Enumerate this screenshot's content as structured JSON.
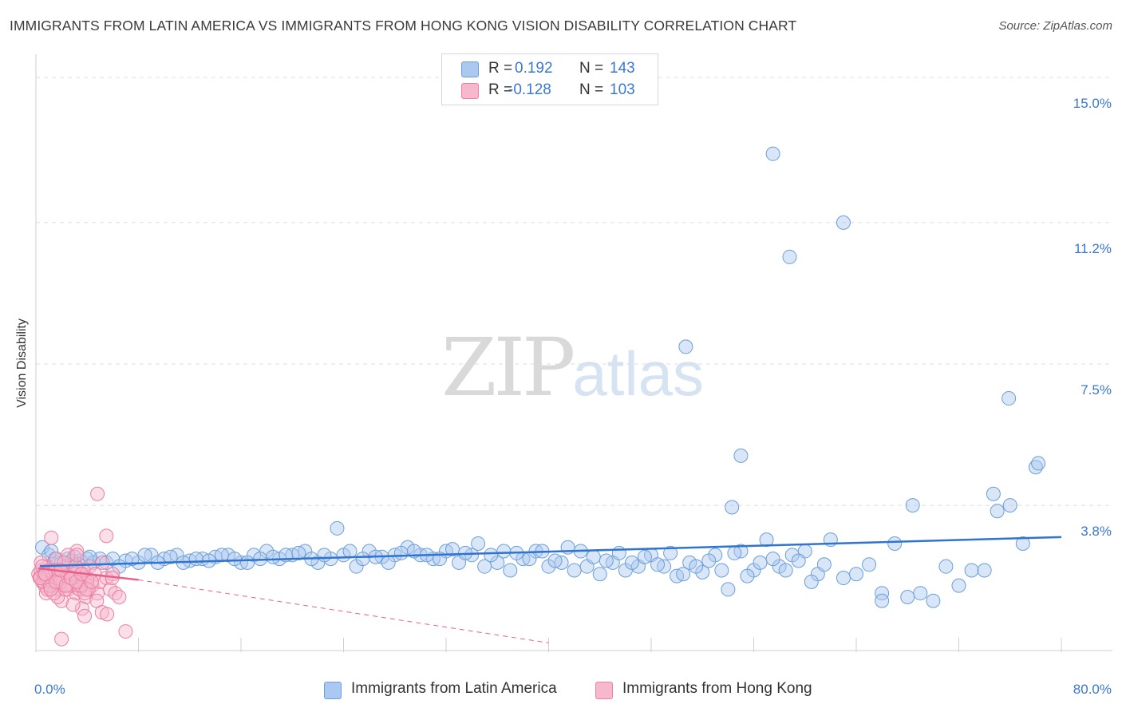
{
  "title": "IMMIGRANTS FROM LATIN AMERICA VS IMMIGRANTS FROM HONG KONG VISION DISABILITY CORRELATION CHART",
  "source": "Source: ZipAtlas.com",
  "watermark": {
    "left": "ZIP",
    "right": "atlas"
  },
  "legend_top": [
    {
      "r_label": "R =",
      "r_value": "0.192",
      "n_label": "N =",
      "n_value": "143",
      "color": "#aac8f0"
    },
    {
      "r_label": "R =",
      "r_value": "-0.128",
      "n_label": "N =",
      "n_value": "103",
      "color": "#f5b8cc"
    }
  ],
  "colors": {
    "blue_fill": "#aac8f0",
    "blue_stroke": "#6a9fd8",
    "blue_line": "#2f74d0",
    "pink_fill": "#f5b8cc",
    "pink_stroke": "#ec7fa2",
    "pink_line": "#e8608a",
    "tick_label": "#3a78d0",
    "grid": "#dcdcdc"
  },
  "chart_data": {
    "type": "scatter",
    "title": "IMMIGRANTS FROM LATIN AMERICA VS IMMIGRANTS FROM HONG KONG VISION DISABILITY CORRELATION CHART",
    "xlabel": "",
    "ylabel": "Vision Disability",
    "xlim": [
      0,
      80
    ],
    "ylim": [
      0,
      15.5
    ],
    "x_ticks": [
      "0.0%",
      "80.0%"
    ],
    "y_ticks": [
      {
        "value": 3.8,
        "label": "3.8%"
      },
      {
        "value": 7.5,
        "label": "7.5%"
      },
      {
        "value": 11.2,
        "label": "11.2%"
      },
      {
        "value": 15.0,
        "label": "15.0%"
      }
    ],
    "grid": true,
    "legend_position": "bottom",
    "series": [
      {
        "name": "Immigrants from Latin America",
        "color": "#aac8f0",
        "trend": {
          "x": [
            0.3,
            80
          ],
          "y": [
            2.21,
            2.97
          ]
        },
        "x": [
          0.5,
          1.0,
          1.5,
          2.0,
          2.5,
          3.0,
          3.5,
          4.0,
          4.5,
          5.0,
          5.5,
          6.0,
          7.0,
          8.0,
          9.0,
          10.0,
          11.0,
          12.0,
          13.0,
          14.0,
          15.0,
          16.0,
          17.0,
          18.0,
          19.0,
          20.0,
          21.0,
          22.0,
          23.0,
          24.0,
          25.0,
          26.0,
          27.0,
          28.0,
          29.0,
          30.0,
          31.0,
          32.0,
          33.0,
          34.0,
          35.0,
          36.0,
          37.0,
          38.0,
          39.0,
          40.0,
          41.0,
          42.0,
          43.0,
          44.0,
          45.0,
          46.0,
          47.0,
          48.0,
          49.0,
          50.0,
          51.0,
          52.0,
          53.0,
          54.0,
          55.0,
          56.0,
          57.0,
          58.0,
          59.0,
          60.0,
          61.0,
          62.0,
          63.0,
          64.0,
          65.0,
          66.0,
          67.0,
          68.0,
          69.0,
          70.0,
          71.0,
          72.0,
          73.0,
          74.0,
          75.0,
          76.0,
          77.0,
          78.0,
          1.2,
          2.8,
          4.2,
          6.5,
          7.5,
          8.5,
          9.5,
          10.5,
          11.5,
          12.5,
          13.5,
          14.5,
          15.5,
          16.5,
          17.5,
          18.5,
          19.5,
          20.5,
          21.5,
          22.5,
          23.5,
          24.5,
          25.5,
          26.5,
          27.5,
          28.5,
          29.5,
          30.5,
          31.5,
          32.5,
          33.5,
          34.5,
          35.5,
          36.5,
          37.5,
          38.5,
          39.5,
          40.5,
          41.5,
          42.5,
          43.5,
          44.5,
          45.5,
          46.5,
          47.5,
          48.5,
          49.5,
          50.5,
          51.5,
          52.5,
          53.5,
          54.5,
          55.5,
          56.5,
          57.5,
          58.5,
          59.5,
          60.5,
          61.5
        ],
        "y": [
          2.7,
          2.5,
          2.4,
          2.3,
          2.4,
          2.45,
          2.35,
          2.4,
          2.3,
          2.4,
          2.3,
          2.4,
          2.35,
          2.3,
          2.5,
          2.4,
          2.5,
          2.35,
          2.4,
          2.45,
          2.5,
          2.3,
          2.5,
          2.6,
          2.4,
          2.5,
          2.6,
          2.3,
          2.4,
          2.5,
          2.2,
          2.6,
          2.45,
          2.5,
          2.7,
          2.5,
          2.4,
          2.6,
          2.3,
          2.5,
          2.2,
          2.3,
          2.1,
          2.4,
          2.6,
          2.2,
          2.3,
          2.1,
          2.2,
          2.0,
          2.3,
          2.1,
          2.2,
          2.5,
          2.2,
          1.95,
          2.3,
          2.05,
          2.5,
          1.6,
          2.6,
          2.1,
          2.9,
          2.2,
          2.5,
          2.6,
          2.0,
          2.9,
          1.9,
          2.0,
          2.25,
          1.5,
          2.8,
          1.4,
          1.5,
          1.3,
          2.2,
          1.7,
          2.1,
          2.1,
          3.65,
          3.8,
          2.8,
          4.8,
          2.6,
          2.35,
          2.45,
          2.2,
          2.4,
          2.5,
          2.3,
          2.45,
          2.3,
          2.4,
          2.35,
          2.5,
          2.4,
          2.3,
          2.4,
          2.45,
          2.5,
          2.55,
          2.4,
          2.5,
          3.2,
          2.6,
          2.4,
          2.45,
          2.3,
          2.55,
          2.6,
          2.5,
          2.4,
          2.65,
          2.55,
          2.8,
          2.5,
          2.6,
          2.55,
          2.4,
          2.6,
          2.35,
          2.7,
          2.6,
          2.45,
          2.35,
          2.55,
          2.3,
          2.45,
          2.25,
          2.55,
          2.0,
          2.2,
          2.35,
          2.1,
          2.55,
          1.95,
          2.3,
          2.4,
          2.1,
          2.35,
          1.8,
          2.25
        ],
        "outliers": {
          "x": [
            57.5,
            63.0,
            58.8,
            50.7,
            75.9,
            55.0,
            78.2,
            74.7,
            54.3,
            68.4,
            66.0
          ],
          "y": [
            13.0,
            11.2,
            10.3,
            7.95,
            6.6,
            5.1,
            4.9,
            4.1,
            3.75,
            3.8,
            1.3
          ]
        }
      },
      {
        "name": "Immigrants from Hong Kong",
        "color": "#f5b8cc",
        "trend_solid": {
          "x": [
            0.2,
            8.0
          ],
          "y": [
            2.15,
            1.85
          ]
        },
        "trend_dashed": {
          "x": [
            8.0,
            40.0
          ],
          "y": [
            1.85,
            0.2
          ]
        },
        "x": [
          0.2,
          0.3,
          0.4,
          0.5,
          0.6,
          0.7,
          0.8,
          0.9,
          1.0,
          1.1,
          1.2,
          1.3,
          1.4,
          1.5,
          1.6,
          1.7,
          1.8,
          1.9,
          2.0,
          2.1,
          2.2,
          2.3,
          2.4,
          2.5,
          2.6,
          2.7,
          2.8,
          2.9,
          3.0,
          3.1,
          3.2,
          3.3,
          3.4,
          3.5,
          3.6,
          3.7,
          3.8,
          3.9,
          4.0,
          4.2,
          4.4,
          4.6,
          4.8,
          5.0,
          5.2,
          5.5,
          5.8,
          6.0,
          6.2,
          6.5,
          7.0,
          0.4,
          0.8,
          1.2,
          1.6,
          2.0,
          2.4,
          2.8,
          3.2,
          3.6,
          4.0,
          0.5,
          0.9,
          1.3,
          1.7,
          2.1,
          2.5,
          2.9,
          3.3,
          3.7,
          4.1,
          0.6,
          1.0,
          1.4,
          1.8,
          2.2,
          2.6,
          3.0,
          3.4,
          3.8,
          0.7,
          1.1,
          1.5,
          1.9,
          2.3,
          2.7,
          3.1,
          3.5,
          0.35,
          0.75,
          1.15,
          1.55,
          1.95,
          2.35,
          2.75,
          3.15,
          3.55,
          3.95,
          4.35,
          4.75,
          5.15,
          5.55,
          5.95
        ],
        "y": [
          2.0,
          1.9,
          2.1,
          1.8,
          2.0,
          1.7,
          1.9,
          2.2,
          1.8,
          2.0,
          1.6,
          1.9,
          2.1,
          1.7,
          2.0,
          1.8,
          1.6,
          2.1,
          1.9,
          1.7,
          2.0,
          2.2,
          1.8,
          1.6,
          1.9,
          2.0,
          1.7,
          1.8,
          2.0,
          1.5,
          1.8,
          2.1,
          1.6,
          1.9,
          1.7,
          2.0,
          1.8,
          1.4,
          1.9,
          2.2,
          1.7,
          2.0,
          1.5,
          1.8,
          2.3,
          1.9,
          1.6,
          2.0,
          1.5,
          1.4,
          0.5,
          2.3,
          1.5,
          1.8,
          2.4,
          1.3,
          1.9,
          1.7,
          2.6,
          1.1,
          1.8,
          2.2,
          1.6,
          2.0,
          1.4,
          1.9,
          2.5,
          1.2,
          1.7,
          2.1,
          1.6,
          1.8,
          2.1,
          1.5,
          1.9,
          2.3,
          1.7,
          2.0,
          1.6,
          1.5,
          2.0,
          1.7,
          2.1,
          1.8,
          1.6,
          1.9,
          2.2,
          1.7,
          1.9,
          2.0,
          1.6,
          1.8,
          2.1,
          1.7,
          1.9,
          1.8,
          2.0,
          1.6,
          1.8,
          1.3,
          1.0,
          0.95,
          1.9
        ],
        "outliers": {
          "x": [
            4.8,
            1.2,
            5.5,
            2.0,
            3.8,
            3.2
          ],
          "y": [
            4.1,
            2.95,
            3.0,
            0.3,
            0.9,
            2.5
          ]
        }
      }
    ]
  },
  "legend_bottom": [
    {
      "label": "Immigrants from Latin America",
      "color": "#aac8f0"
    },
    {
      "label": "Immigrants from Hong Kong",
      "color": "#f5b8cc"
    }
  ]
}
